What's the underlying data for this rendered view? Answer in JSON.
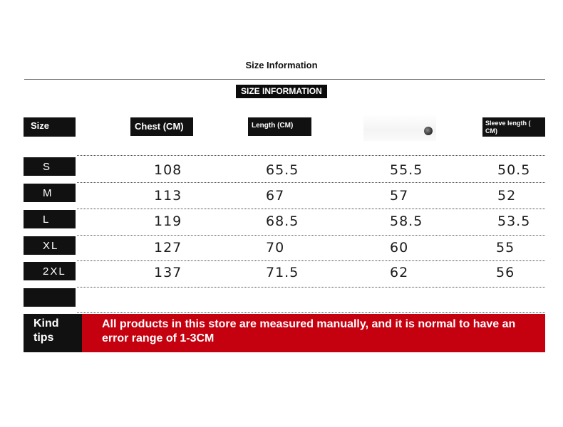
{
  "title": "Size Information",
  "badge": "SIZE INFORMATION",
  "columns": {
    "size": "Size",
    "chest": "Chest (CM)",
    "length": "Length (CM)",
    "sleeve": "Sleeve length ( CM)"
  },
  "rows": [
    {
      "size": "S",
      "chest": "108",
      "length": "65.5",
      "col4": "55.5",
      "sleeve": "50.5"
    },
    {
      "size": "M",
      "chest": "113",
      "length": "67",
      "col4": "57",
      "sleeve": "52"
    },
    {
      "size": "L",
      "chest": "119",
      "length": "68.5",
      "col4": "58.5",
      "sleeve": "53.5"
    },
    {
      "size": "XL",
      "chest": "127",
      "length": "70",
      "col4": "60",
      "sleeve": "55"
    },
    {
      "size": "2XL",
      "chest": "137",
      "length": "71.5",
      "col4": "62",
      "sleeve": "56"
    }
  ],
  "tips": {
    "label": "Kind tips",
    "text": "All products in this store are measured manually, and it is normal to have an error range of 1-3CM"
  },
  "colors": {
    "accent": "#c5000f",
    "header_bg": "#111111"
  },
  "icons": {
    "column4_header": "gear-icon"
  }
}
